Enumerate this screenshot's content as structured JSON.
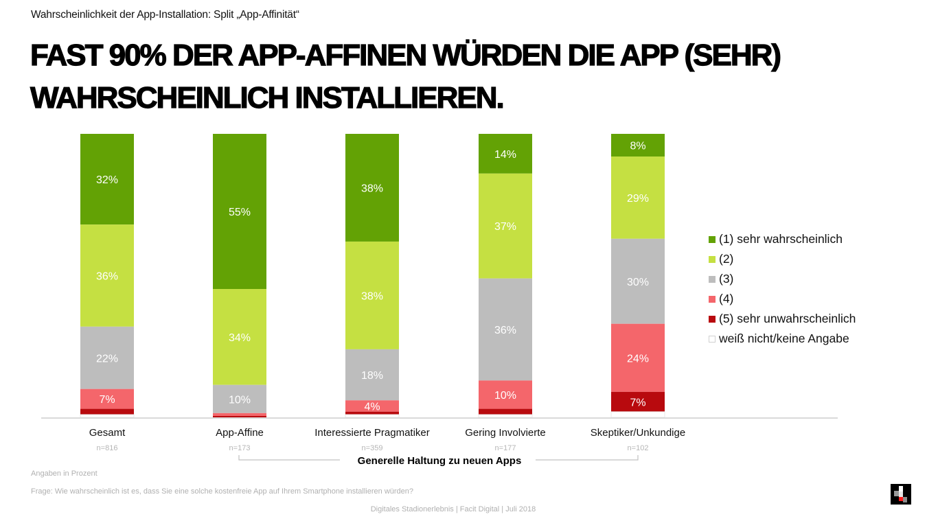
{
  "header": {
    "subtitle": "Wahrscheinlichkeit der App-Installation: Split „App-Affinität“",
    "headline": "FAST 90% DER APP-AFFINEN WÜRDEN DIE APP (SEHR) WAHRSCHEINLICH INSTALLIEREN."
  },
  "chart_data": {
    "type": "bar",
    "stacked": true,
    "percent_stacked": true,
    "title": "Wahrscheinlichkeit der App-Installation: Split „App-Affinität“",
    "xlabel": "Generelle Haltung zu neuen Apps",
    "ylabel": "",
    "ylim": [
      0,
      100
    ],
    "grid": false,
    "legend_position": "right",
    "categories": [
      "Gesamt",
      "App-Affine",
      "Interessierte Pragmatiker",
      "Gering Involvierte",
      "Skeptiker/Unkundige"
    ],
    "sample_sizes": [
      "n=816",
      "n=173",
      "n=359",
      "n=177",
      "n=102"
    ],
    "series": [
      {
        "name": "(1) sehr wahrscheinlich",
        "color": "#63a205",
        "values": [
          32,
          55,
          38,
          14,
          8
        ],
        "labels": [
          "32%",
          "55%",
          "38%",
          "14%",
          "8%"
        ]
      },
      {
        "name": "(2)",
        "color": "#c5e042",
        "values": [
          36,
          34,
          38,
          37,
          29
        ],
        "labels": [
          "36%",
          "34%",
          "38%",
          "37%",
          "29%"
        ]
      },
      {
        "name": "(3)",
        "color": "#bdbdbd",
        "values": [
          22,
          10,
          18,
          36,
          30
        ],
        "labels": [
          "22%",
          "10%",
          "18%",
          "36%",
          "30%"
        ]
      },
      {
        "name": "(4)",
        "color": "#f4666b",
        "values": [
          7,
          1,
          4,
          10,
          24
        ],
        "labels": [
          "7%",
          "",
          "4%",
          "10%",
          "24%"
        ]
      },
      {
        "name": "(5) sehr unwahrscheinlich",
        "color": "#b80a0e",
        "values": [
          2,
          0.5,
          1,
          2,
          7
        ],
        "labels": [
          "",
          "",
          "",
          "",
          "7%"
        ]
      },
      {
        "name": "weiß nicht/keine Angabe",
        "color": "#ffffff",
        "values": [
          1,
          0,
          1,
          1,
          2
        ],
        "labels": [
          "",
          "",
          "",
          "",
          ""
        ]
      }
    ]
  },
  "notes": {
    "units": "Angaben in Prozent",
    "question": "Frage: Wie wahrscheinlich ist es, dass Sie eine solche kostenfreie App auf Ihrem Smartphone installieren würden?"
  },
  "footer": "Digitales Stadionerlebnis | Facit Digital | Juli 2018",
  "logo": "facit-digital-logo"
}
